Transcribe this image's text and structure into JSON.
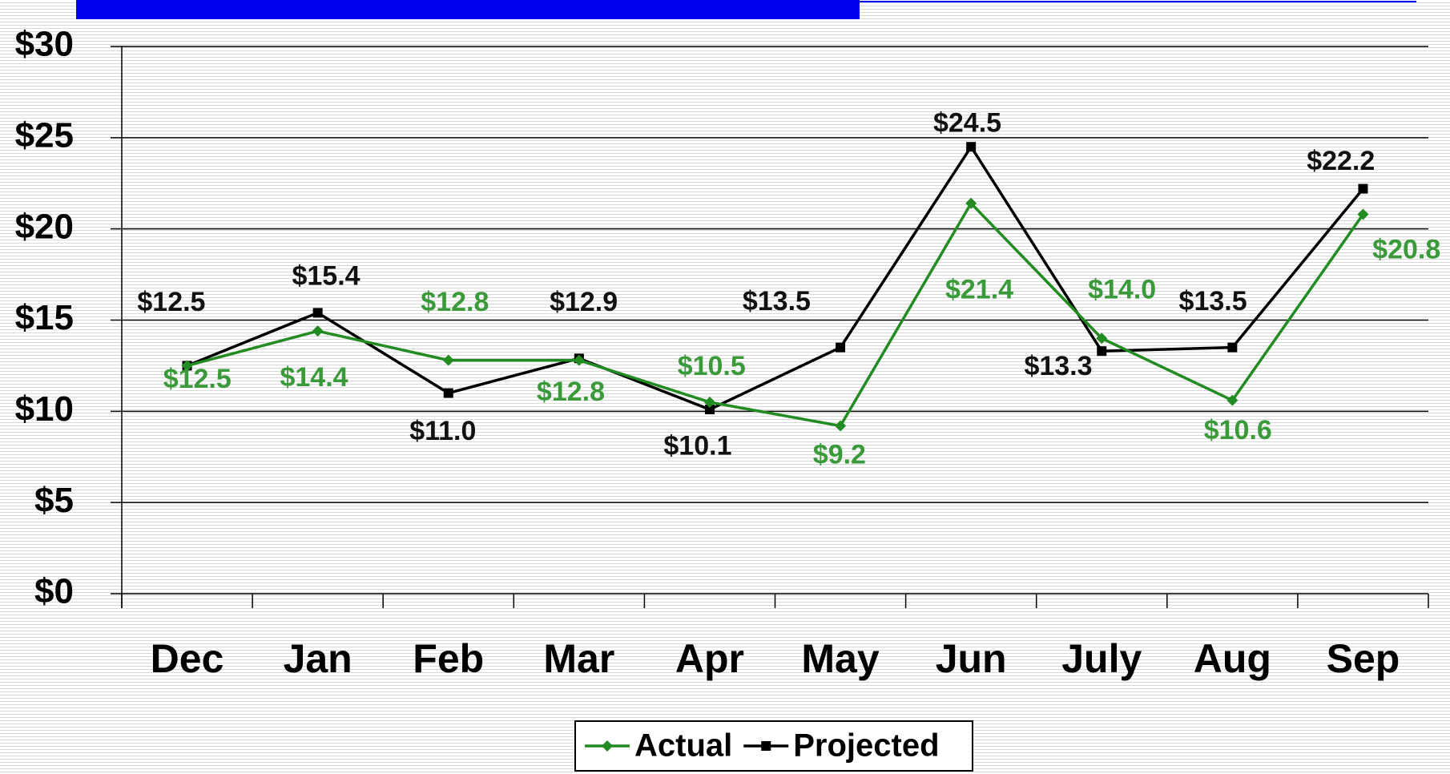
{
  "chart_data": {
    "type": "line",
    "categories": [
      "Dec",
      "Jan",
      "Feb",
      "Mar",
      "Apr",
      "May",
      "Jun",
      "July",
      "Aug",
      "Sep"
    ],
    "series": [
      {
        "name": "Actual",
        "color": "#228b22",
        "marker": "diamond",
        "values": [
          12.5,
          14.4,
          12.8,
          12.8,
          10.5,
          9.2,
          21.4,
          14.0,
          10.6,
          20.8
        ],
        "value_labels": [
          "$12.5",
          "$14.4",
          "$12.8",
          "$12.8",
          "$10.5",
          "$9.2",
          "$21.4",
          "$14.0",
          "$10.6",
          "$20.8"
        ]
      },
      {
        "name": "Projected",
        "color": "#000000",
        "marker": "square",
        "values": [
          12.5,
          15.4,
          11.0,
          12.9,
          10.1,
          13.5,
          24.5,
          13.3,
          13.5,
          22.2
        ],
        "value_labels": [
          "$12.5",
          "$15.4",
          "$11.0",
          "$12.9",
          "$10.1",
          "$13.5",
          "$24.5",
          "$13.3",
          "$13.5",
          "$22.2"
        ]
      }
    ],
    "ylim": [
      0,
      30
    ],
    "yticks": [
      {
        "value": 0,
        "label": "$0"
      },
      {
        "value": 5,
        "label": "$5"
      },
      {
        "value": 10,
        "label": "$10"
      },
      {
        "value": 15,
        "label": "$15"
      },
      {
        "value": 20,
        "label": "$20"
      },
      {
        "value": 25,
        "label": "$25"
      },
      {
        "value": 30,
        "label": "$30"
      }
    ],
    "grid": true,
    "legend": "bottom"
  }
}
